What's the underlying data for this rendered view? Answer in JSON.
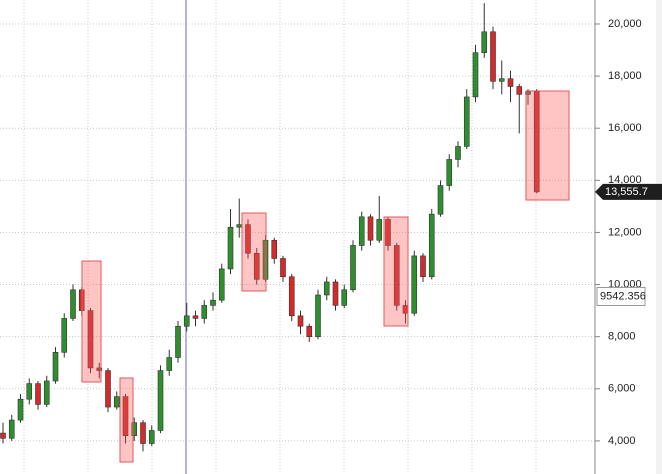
{
  "chart_data": {
    "type": "candlestick",
    "open": [
      4300,
      4100,
      4800,
      5600,
      6200,
      5400,
      6300,
      7400,
      8700,
      9800,
      9000,
      6800,
      6700,
      5300,
      5700,
      4200,
      4700,
      3900,
      4400,
      6700,
      7200,
      8400,
      8800,
      8700,
      9200,
      9400,
      10600,
      12200,
      12300,
      11200,
      10200,
      11700,
      11000,
      10300,
      8800,
      8400,
      8000,
      9600,
      10100,
      9200,
      9800,
      11500,
      12600,
      11700,
      12500,
      11500,
      9200,
      8900,
      11100,
      10300,
      12700,
      13800,
      14800,
      15300,
      17200,
      18900,
      19700,
      17800,
      17900,
      17600,
      17300,
      17400
    ],
    "high": [
      4700,
      5000,
      5800,
      6400,
      6300,
      6500,
      7600,
      8900,
      10000,
      9900,
      9100,
      7000,
      6800,
      5900,
      5800,
      4900,
      4800,
      4600,
      6900,
      7500,
      8600,
      9300,
      9000,
      9400,
      9700,
      10800,
      12900,
      13300,
      12500,
      11400,
      11900,
      11800,
      11100,
      10400,
      9000,
      8500,
      9800,
      10300,
      10200,
      10000,
      11700,
      12800,
      12700,
      13400,
      12600,
      11600,
      9400,
      11300,
      11200,
      12900,
      14000,
      15000,
      15500,
      17500,
      19200,
      20800,
      19900,
      18600,
      18200,
      17700,
      17500,
      17500
    ],
    "low": [
      3900,
      4000,
      4700,
      5400,
      5200,
      5300,
      6200,
      7200,
      8600,
      8800,
      6600,
      6400,
      5100,
      5200,
      3900,
      4000,
      3600,
      3800,
      4300,
      6500,
      7000,
      8200,
      8400,
      8500,
      9000,
      9300,
      10400,
      11800,
      11000,
      10000,
      10100,
      10800,
      10100,
      8600,
      8100,
      7800,
      7900,
      9400,
      9000,
      9100,
      9700,
      11300,
      11500,
      11600,
      11300,
      9000,
      8500,
      8800,
      10100,
      10200,
      12600,
      13600,
      14500,
      15200,
      17000,
      18700,
      17500,
      17300,
      17000,
      15800,
      16900,
      13500
    ],
    "close": [
      4100,
      4800,
      5600,
      6200,
      5400,
      6300,
      7400,
      8700,
      9800,
      9000,
      6800,
      6700,
      5300,
      5700,
      4200,
      4700,
      3900,
      4400,
      6700,
      7200,
      8400,
      8800,
      8700,
      9200,
      9400,
      10600,
      12200,
      12300,
      11200,
      10200,
      11700,
      11000,
      10300,
      8800,
      8400,
      8000,
      9600,
      10100,
      9200,
      9800,
      11500,
      12600,
      11700,
      12500,
      11500,
      9200,
      8900,
      11100,
      10300,
      12700,
      13800,
      14800,
      15300,
      17200,
      18900,
      19700,
      17800,
      17900,
      17600,
      17300,
      17400,
      13555.7
    ],
    "up_color": "#2f8f2f",
    "down_color": "#d42a2a",
    "ylim": [
      2730,
      20920
    ],
    "yticks": [
      {
        "value": 4000,
        "label": "4,000"
      },
      {
        "value": 6000,
        "label": "6,000"
      },
      {
        "value": 8000,
        "label": "8,000"
      },
      {
        "value": 10000,
        "label": "10,000"
      },
      {
        "value": 12000,
        "label": "12,000"
      },
      {
        "value": 14000,
        "label": "14,000"
      },
      {
        "value": 16000,
        "label": "16,000"
      },
      {
        "value": 18000,
        "label": "18,000"
      },
      {
        "value": 20000,
        "label": "20,000"
      }
    ],
    "grid": true,
    "last_price": {
      "value": 13555.7,
      "label": "13,555.7"
    },
    "cursor_price": {
      "value": 9542.356,
      "label": "9542.356"
    }
  }
}
